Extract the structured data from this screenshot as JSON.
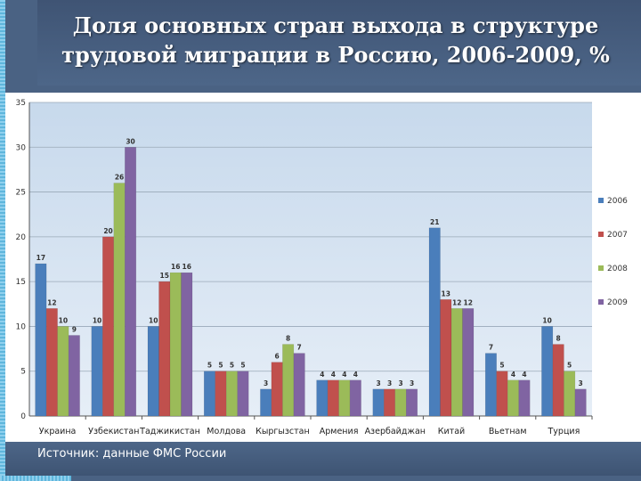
{
  "slide": {
    "title_line1": "Доля основных стран выхода в структуре",
    "title_line2": "трудовой миграции в Россию,  2006-2009, %",
    "source": "Источник: данные ФМС России"
  },
  "chart_data": {
    "type": "bar",
    "categories": [
      "Украина",
      "Узбекистан",
      "Таджикистан",
      "Молдова",
      "Кыргызстан",
      "Армения",
      "Азербайджан",
      "Китай",
      "Вьетнам",
      "Турция"
    ],
    "series": [
      {
        "name": "2006",
        "color": "#4a7ebb",
        "values": [
          17,
          10,
          10,
          5,
          3,
          4,
          3,
          21,
          7,
          10
        ]
      },
      {
        "name": "2007",
        "color": "#c0504d",
        "values": [
          12,
          20,
          15,
          5,
          6,
          4,
          3,
          13,
          5,
          8
        ]
      },
      {
        "name": "2008",
        "color": "#9bbb59",
        "values": [
          10,
          26,
          16,
          5,
          8,
          4,
          3,
          12,
          4,
          5
        ]
      },
      {
        "name": "2009",
        "color": "#8064a2",
        "values": [
          9,
          30,
          16,
          5,
          7,
          4,
          3,
          12,
          4,
          3
        ]
      }
    ],
    "ylim": [
      0,
      35
    ],
    "yticks": [
      0,
      5,
      10,
      15,
      20,
      25,
      30,
      35
    ],
    "grid": true,
    "legend": "right",
    "plot_background": "#d9e6f2"
  }
}
